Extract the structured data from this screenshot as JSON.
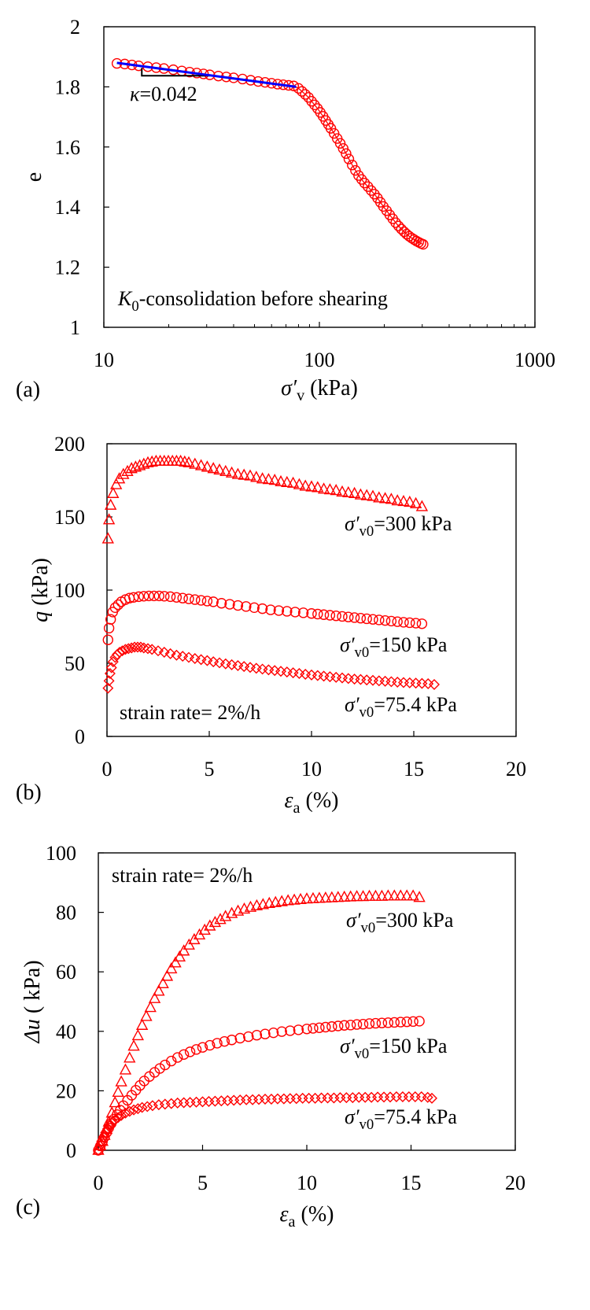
{
  "chart_data": [
    {
      "type": "scatter",
      "panel_label": "(a)",
      "x_scale": "log",
      "xlim": [
        10,
        1000
      ],
      "ylim": [
        1,
        2
      ],
      "x_ticks": [
        "10",
        "100",
        "1000"
      ],
      "y_ticks": [
        "1",
        "1.2",
        "1.4",
        "1.6",
        "1.8",
        "2"
      ],
      "xlabel": {
        "main": "σ′",
        "sub": "v",
        "rest": " (kPa)"
      },
      "ylabel": "e",
      "annotation": {
        "main": "K",
        "sub": "0",
        "rest": "-consolidation before shearing"
      },
      "slope_label": {
        "symbol": "κ",
        "rest": "=0.042"
      },
      "grid": false,
      "colors": {
        "points": "#ff0000",
        "fit": "#0000ff",
        "triangle": "#000000"
      },
      "series": [
        {
          "marker": "circle",
          "x": [
            11.5,
            12.5,
            13.5,
            14.5,
            16,
            17.5,
            19,
            21,
            23,
            25,
            27,
            29,
            31,
            34,
            37,
            40,
            44,
            48,
            52,
            56,
            60,
            64,
            68,
            72,
            76,
            80,
            83,
            86,
            89,
            92,
            95,
            98,
            101,
            104,
            107,
            110,
            113,
            117,
            121,
            125,
            129,
            133,
            137,
            142,
            147,
            152,
            157,
            162,
            168,
            174,
            180,
            186,
            192,
            198,
            205,
            212,
            219,
            226,
            233,
            240,
            247,
            254,
            261,
            268,
            275,
            282,
            289,
            296,
            303
          ],
          "y": [
            1.878,
            1.876,
            1.873,
            1.87,
            1.867,
            1.864,
            1.861,
            1.857,
            1.853,
            1.849,
            1.846,
            1.843,
            1.84,
            1.836,
            1.833,
            1.83,
            1.826,
            1.822,
            1.818,
            1.815,
            1.812,
            1.809,
            1.807,
            1.805,
            1.803,
            1.795,
            1.785,
            1.775,
            1.765,
            1.752,
            1.74,
            1.728,
            1.715,
            1.702,
            1.688,
            1.675,
            1.662,
            1.645,
            1.628,
            1.612,
            1.595,
            1.578,
            1.56,
            1.54,
            1.522,
            1.505,
            1.492,
            1.48,
            1.468,
            1.455,
            1.443,
            1.43,
            1.416,
            1.402,
            1.388,
            1.374,
            1.361,
            1.348,
            1.337,
            1.327,
            1.318,
            1.31,
            1.303,
            1.297,
            1.292,
            1.287,
            1.283,
            1.279,
            1.276
          ]
        }
      ],
      "fit_line": {
        "x": [
          11.5,
          78
        ],
        "y": [
          1.88,
          1.8
        ]
      },
      "slope_triangle": {
        "x": [
          15,
          31
        ],
        "y": [
          1.863,
          1.837
        ]
      }
    },
    {
      "type": "scatter",
      "panel_label": "(b)",
      "xlim": [
        0,
        20
      ],
      "ylim": [
        0,
        200
      ],
      "x_ticks": [
        "0",
        "5",
        "10",
        "15",
        "20"
      ],
      "y_ticks": [
        "0",
        "50",
        "100",
        "150",
        "200"
      ],
      "xlabel": {
        "main": "ε",
        "sub": "a",
        "rest": " (%)"
      },
      "ylabel": {
        "main": "q",
        "rest": " (kPa)"
      },
      "annotation": "strain rate= 2%/h",
      "grid": false,
      "colors": {
        "points": "#ff0000"
      },
      "series": [
        {
          "marker": "triangle",
          "label": {
            "main": "σ′",
            "sub": "v0",
            "rest": "=300 kPa"
          },
          "x": [
            0.05,
            0.1,
            0.18,
            0.3,
            0.45,
            0.6,
            0.8,
            1.0,
            1.2,
            1.4,
            1.6,
            1.8,
            2.0,
            2.2,
            2.4,
            2.6,
            2.8,
            3.0,
            3.2,
            3.4,
            3.6,
            3.8,
            4.0,
            4.3,
            4.6,
            4.9,
            5.2,
            5.5,
            5.8,
            6.1,
            6.4,
            6.7,
            7.0,
            7.3,
            7.6,
            7.9,
            8.2,
            8.5,
            8.8,
            9.1,
            9.4,
            9.7,
            10.0,
            10.3,
            10.6,
            10.9,
            11.2,
            11.5,
            11.8,
            12.1,
            12.4,
            12.7,
            13.0,
            13.3,
            13.6,
            13.9,
            14.2,
            14.5,
            14.8,
            15.1,
            15.4
          ],
          "y": [
            135,
            148,
            158,
            166,
            172,
            176,
            179,
            181,
            183,
            184,
            185,
            186,
            187,
            187.5,
            188,
            188,
            188,
            188,
            188,
            188,
            188,
            187.5,
            187,
            186,
            185,
            184,
            183,
            182,
            181,
            180,
            179,
            178.5,
            178,
            177,
            176,
            175.5,
            175,
            174,
            173.5,
            173,
            172,
            171,
            170.5,
            170,
            169,
            168.5,
            168,
            167,
            166.5,
            166,
            165,
            164.5,
            164,
            163,
            162.5,
            162,
            161,
            160.5,
            160,
            159,
            157
          ]
        },
        {
          "marker": "circle",
          "label": {
            "main": "σ′",
            "sub": "v0",
            "rest": "=150 kPa"
          },
          "x": [
            0.05,
            0.1,
            0.18,
            0.28,
            0.4,
            0.55,
            0.7,
            0.9,
            1.1,
            1.3,
            1.55,
            1.8,
            2.05,
            2.3,
            2.55,
            2.8,
            3.1,
            3.4,
            3.7,
            4.0,
            4.3,
            4.6,
            4.9,
            5.2,
            5.6,
            6.0,
            6.4,
            6.8,
            7.2,
            7.6,
            8.0,
            8.4,
            8.8,
            9.2,
            9.6,
            10.0,
            10.3,
            10.6,
            10.9,
            11.2,
            11.5,
            11.8,
            12.1,
            12.4,
            12.7,
            13.0,
            13.3,
            13.6,
            13.9,
            14.2,
            14.5,
            14.8,
            15.1,
            15.4
          ],
          "y": [
            66,
            74,
            80,
            85,
            88,
            90,
            92,
            93.5,
            94.5,
            95,
            95.5,
            95.8,
            96,
            96,
            96,
            95.8,
            95.5,
            95,
            94.5,
            94,
            93.5,
            93,
            92.5,
            92,
            91,
            90.3,
            89.5,
            88.8,
            88,
            87.3,
            86.5,
            86,
            85.5,
            85,
            84.5,
            84,
            83.6,
            83.2,
            82.8,
            82.4,
            82,
            81.6,
            81.2,
            80.8,
            80.4,
            80,
            79.6,
            79.2,
            78.8,
            78.4,
            78,
            77.7,
            77.4,
            77
          ]
        },
        {
          "marker": "diamond",
          "label": {
            "main": "σ′",
            "sub": "v0",
            "rest": "=75.4 kPa"
          },
          "x": [
            0.05,
            0.1,
            0.15,
            0.22,
            0.3,
            0.4,
            0.5,
            0.62,
            0.75,
            0.9,
            1.05,
            1.2,
            1.35,
            1.5,
            1.65,
            1.8,
            2.0,
            2.2,
            2.5,
            2.8,
            3.1,
            3.4,
            3.7,
            4.0,
            4.3,
            4.6,
            4.9,
            5.2,
            5.5,
            5.8,
            6.1,
            6.4,
            6.7,
            7.0,
            7.3,
            7.6,
            7.9,
            8.2,
            8.5,
            8.8,
            9.1,
            9.4,
            9.7,
            10.0,
            10.3,
            10.6,
            10.9,
            11.2,
            11.5,
            11.8,
            12.1,
            12.4,
            12.7,
            13.0,
            13.3,
            13.6,
            13.9,
            14.2,
            14.5,
            14.8,
            15.1,
            15.4,
            15.7,
            16.0
          ],
          "y": [
            33,
            38,
            43,
            47,
            51,
            54,
            56,
            57.5,
            58.5,
            59.5,
            60,
            60.5,
            61,
            61,
            61,
            60.5,
            60,
            59.5,
            58.5,
            57.5,
            56.5,
            55.5,
            54.8,
            54,
            53.2,
            52.5,
            51.8,
            51,
            50.3,
            49.6,
            49,
            48.4,
            47.8,
            47.2,
            46.6,
            46,
            45.5,
            45,
            44.5,
            44,
            43.5,
            43,
            42.5,
            42,
            41.6,
            41.2,
            40.8,
            40.4,
            40,
            39.6,
            39.2,
            38.9,
            38.6,
            38.3,
            38,
            37.7,
            37.4,
            37.1,
            36.8,
            36.6,
            36.4,
            36.2,
            36,
            35.5
          ]
        }
      ]
    },
    {
      "type": "scatter",
      "panel_label": "(c)",
      "xlim": [
        0,
        20
      ],
      "ylim": [
        0,
        100
      ],
      "x_ticks": [
        "0",
        "5",
        "10",
        "15",
        "20"
      ],
      "y_ticks": [
        "0",
        "20",
        "40",
        "60",
        "80",
        "100"
      ],
      "xlabel": {
        "main": "ε",
        "sub": "a",
        "rest": " (%)"
      },
      "ylabel": {
        "main": "Δu",
        "rest": " ( kPa)"
      },
      "annotation": "strain rate= 2%/h",
      "grid": false,
      "colors": {
        "points": "#ff0000"
      },
      "series": [
        {
          "marker": "triangle",
          "label": {
            "main": "σ′",
            "sub": "v0",
            "rest": "=300 kPa"
          },
          "x": [
            0,
            0.1,
            0.2,
            0.3,
            0.4,
            0.5,
            0.65,
            0.8,
            0.95,
            1.1,
            1.3,
            1.5,
            1.7,
            1.9,
            2.1,
            2.3,
            2.5,
            2.7,
            2.9,
            3.1,
            3.3,
            3.5,
            3.7,
            3.9,
            4.1,
            4.35,
            4.6,
            4.85,
            5.1,
            5.35,
            5.6,
            5.85,
            6.1,
            6.4,
            6.7,
            7.0,
            7.3,
            7.6,
            7.9,
            8.2,
            8.5,
            8.8,
            9.1,
            9.4,
            9.7,
            10.0,
            10.3,
            10.6,
            10.9,
            11.2,
            11.5,
            11.8,
            12.1,
            12.4,
            12.7,
            13.0,
            13.3,
            13.6,
            13.9,
            14.2,
            14.5,
            14.8,
            15.1,
            15.4
          ],
          "y": [
            0,
            1.5,
            3,
            5,
            7,
            9.5,
            12.5,
            16,
            19.5,
            23,
            27,
            31,
            35,
            38.5,
            42,
            45,
            48,
            51,
            53.5,
            56,
            58.5,
            61,
            63,
            65,
            67,
            69,
            70.8,
            72.4,
            74,
            75.4,
            76.6,
            77.6,
            78.6,
            79.6,
            80.4,
            81.1,
            81.7,
            82.2,
            82.6,
            83,
            83.3,
            83.6,
            83.9,
            84.1,
            84.3,
            84.5,
            84.6,
            84.7,
            84.8,
            84.9,
            85,
            85.1,
            85.2,
            85.3,
            85.3,
            85.4,
            85.4,
            85.4,
            85.5,
            85.5,
            85.5,
            85.5,
            85.5,
            85
          ]
        },
        {
          "marker": "circle",
          "label": {
            "main": "σ′",
            "sub": "v0",
            "rest": "=150 kPa"
          },
          "x": [
            0,
            0.1,
            0.2,
            0.3,
            0.4,
            0.5,
            0.62,
            0.75,
            0.9,
            1.05,
            1.2,
            1.4,
            1.6,
            1.8,
            2.0,
            2.2,
            2.45,
            2.7,
            2.95,
            3.2,
            3.5,
            3.8,
            4.1,
            4.4,
            4.7,
            5.0,
            5.35,
            5.7,
            6.05,
            6.4,
            6.8,
            7.2,
            7.6,
            8.0,
            8.4,
            8.8,
            9.2,
            9.6,
            10.0,
            10.3,
            10.6,
            10.9,
            11.2,
            11.5,
            11.8,
            12.1,
            12.4,
            12.7,
            13.0,
            13.3,
            13.6,
            13.9,
            14.2,
            14.5,
            14.8,
            15.1,
            15.4
          ],
          "y": [
            0,
            1.5,
            3,
            4.5,
            6,
            7.5,
            9,
            10.5,
            12,
            13.5,
            15,
            16.8,
            18.5,
            20.2,
            21.8,
            23.3,
            24.8,
            26.2,
            27.5,
            28.7,
            30,
            31.2,
            32.2,
            33.1,
            33.9,
            34.6,
            35.3,
            36,
            36.6,
            37.1,
            37.7,
            38.2,
            38.7,
            39.1,
            39.5,
            39.9,
            40.2,
            40.5,
            40.8,
            41,
            41.2,
            41.4,
            41.6,
            41.8,
            42,
            42.1,
            42.3,
            42.4,
            42.6,
            42.7,
            42.8,
            42.9,
            43,
            43.1,
            43.2,
            43.3,
            43.4
          ]
        },
        {
          "marker": "diamond",
          "label": {
            "main": "σ′",
            "sub": "v0",
            "rest": "=75.4 kPa"
          },
          "x": [
            0,
            0.08,
            0.16,
            0.25,
            0.35,
            0.45,
            0.55,
            0.65,
            0.8,
            0.95,
            1.1,
            1.3,
            1.5,
            1.7,
            1.9,
            2.1,
            2.35,
            2.6,
            2.9,
            3.2,
            3.5,
            3.8,
            4.1,
            4.4,
            4.7,
            5.0,
            5.3,
            5.6,
            5.9,
            6.2,
            6.5,
            6.8,
            7.1,
            7.4,
            7.7,
            8.0,
            8.3,
            8.6,
            8.9,
            9.2,
            9.5,
            9.8,
            10.1,
            10.4,
            10.7,
            11.0,
            11.3,
            11.6,
            11.9,
            12.2,
            12.5,
            12.8,
            13.1,
            13.4,
            13.7,
            14.0,
            14.3,
            14.6,
            14.9,
            15.2,
            15.5,
            15.8,
            16.0
          ],
          "y": [
            0,
            1.5,
            3,
            4.5,
            6,
            7.2,
            8.3,
            9.2,
            10.2,
            11,
            11.7,
            12.5,
            13.1,
            13.6,
            14,
            14.4,
            14.7,
            15,
            15.3,
            15.5,
            15.7,
            15.9,
            16,
            16.1,
            16.2,
            16.3,
            16.4,
            16.5,
            16.6,
            16.7,
            16.8,
            16.9,
            17,
            17,
            17.1,
            17.2,
            17.2,
            17.3,
            17.3,
            17.4,
            17.4,
            17.5,
            17.5,
            17.5,
            17.6,
            17.6,
            17.6,
            17.7,
            17.7,
            17.7,
            17.8,
            17.8,
            17.8,
            17.9,
            17.9,
            17.9,
            18,
            18,
            18,
            18,
            18,
            17.8,
            17.5
          ]
        }
      ]
    }
  ]
}
